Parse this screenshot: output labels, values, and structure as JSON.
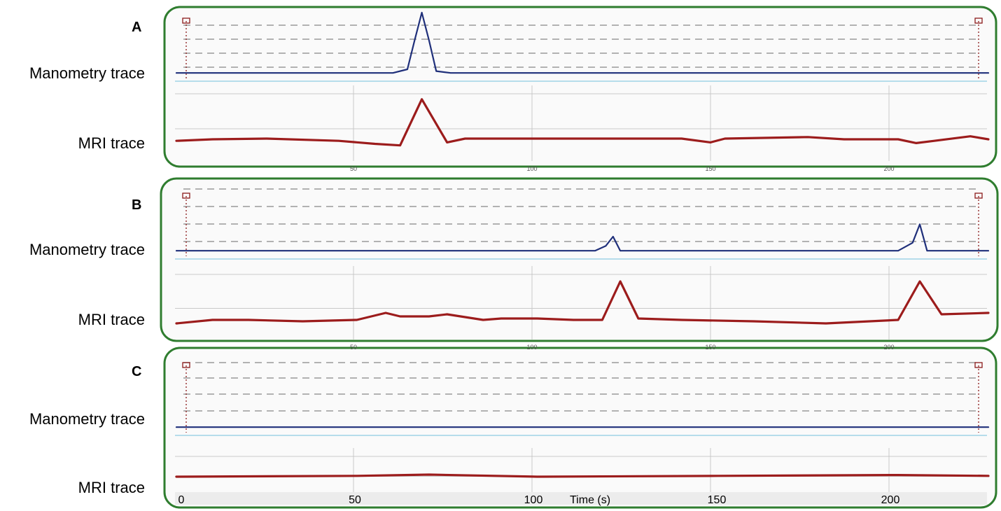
{
  "labels": {
    "panel_a": "A",
    "panel_b": "B",
    "panel_c": "C",
    "manometry": "Manometry trace",
    "mri": "MRI trace",
    "xlabel": "Time (s)",
    "x_ticks": [
      "0",
      "50",
      "100",
      "150",
      "200"
    ],
    "small_ticks": [
      "50",
      "100",
      "150",
      "200"
    ]
  },
  "colors": {
    "manometry": "#1f2f7a",
    "manometry_peak": "#2336c8",
    "mri": "#9c1c1c",
    "frame": "#2f7d2f",
    "grid": "#c9c9c9",
    "dash": "#9a9a9a",
    "marker": "#8b1a1a"
  },
  "chart_data": [
    {
      "type": "line",
      "panel": "A",
      "xlim": [
        0,
        225
      ],
      "series": [
        {
          "label": "Manometry trace",
          "x": [
            0,
            60,
            64,
            66,
            68,
            70,
            72,
            76,
            225
          ],
          "y": [
            0.02,
            0.02,
            0.08,
            0.55,
            1.0,
            0.55,
            0.05,
            0.02,
            0.02
          ]
        },
        {
          "label": "MRI trace",
          "x": [
            0,
            10,
            25,
            45,
            55,
            62,
            68,
            75,
            80,
            100,
            140,
            148,
            152,
            175,
            185,
            200,
            205,
            210,
            220,
            225
          ],
          "y": [
            0.1,
            0.12,
            0.13,
            0.1,
            0.06,
            0.04,
            0.65,
            0.08,
            0.13,
            0.13,
            0.13,
            0.08,
            0.13,
            0.15,
            0.12,
            0.12,
            0.07,
            0.1,
            0.16,
            0.12
          ]
        }
      ]
    },
    {
      "type": "line",
      "panel": "B",
      "xlim": [
        0,
        225
      ],
      "series": [
        {
          "label": "Manometry trace",
          "x": [
            0,
            116,
            119,
            121,
            123,
            200,
            204,
            206,
            208,
            212,
            225
          ],
          "y": [
            0.02,
            0.02,
            0.1,
            0.25,
            0.02,
            0.02,
            0.15,
            0.45,
            0.02,
            0.02,
            0.02
          ]
        },
        {
          "label": "MRI trace",
          "x": [
            0,
            10,
            20,
            35,
            50,
            58,
            62,
            70,
            75,
            85,
            90,
            100,
            110,
            118,
            123,
            128,
            140,
            160,
            180,
            200,
            206,
            212,
            225
          ],
          "y": [
            0.05,
            0.1,
            0.1,
            0.08,
            0.1,
            0.2,
            0.15,
            0.15,
            0.18,
            0.1,
            0.12,
            0.12,
            0.1,
            0.1,
            0.65,
            0.12,
            0.1,
            0.08,
            0.05,
            0.1,
            0.65,
            0.18,
            0.2
          ]
        }
      ]
    },
    {
      "type": "line",
      "panel": "C",
      "xlim": [
        0,
        225
      ],
      "series": [
        {
          "label": "Manometry trace",
          "x": [
            0,
            225
          ],
          "y": [
            0.02,
            0.02
          ]
        },
        {
          "label": "MRI trace",
          "x": [
            0,
            50,
            70,
            100,
            150,
            200,
            225
          ],
          "y": [
            0.1,
            0.12,
            0.15,
            0.1,
            0.12,
            0.14,
            0.12
          ]
        }
      ]
    }
  ]
}
